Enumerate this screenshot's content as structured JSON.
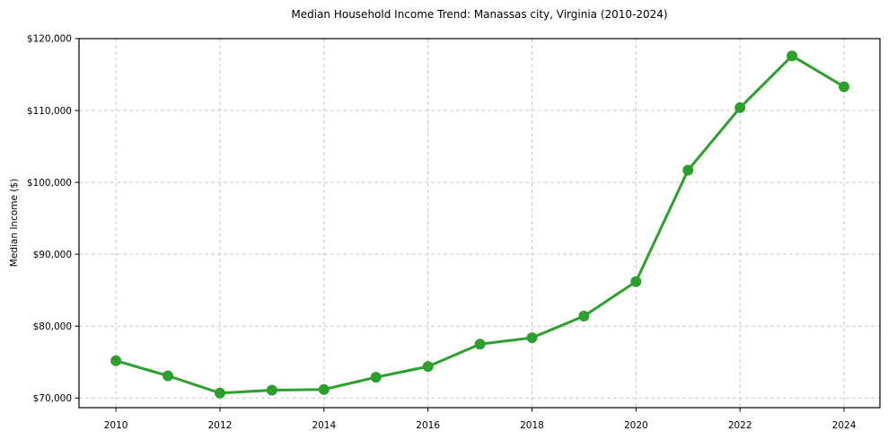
{
  "chart_data": {
    "type": "line",
    "title": "Median Household Income Trend: Manassas city, Virginia (2010-2024)",
    "ylabel": "Median Income ($)",
    "xlabel": "",
    "x": [
      2010,
      2011,
      2012,
      2013,
      2014,
      2015,
      2016,
      2017,
      2018,
      2019,
      2020,
      2021,
      2022,
      2023,
      2024
    ],
    "values": [
      75200,
      73100,
      70700,
      71100,
      71200,
      72900,
      74400,
      77500,
      78400,
      81400,
      86200,
      101700,
      110400,
      117600,
      113300
    ],
    "series_name": "Median Household Income",
    "xlim": [
      2009.29,
      2024.69
    ],
    "ylim": [
      68664,
      120000
    ],
    "yticks": [
      70000,
      80000,
      90000,
      100000,
      110000,
      120000
    ],
    "ytick_labels": [
      "$70,000",
      "$80,000",
      "$90,000",
      "$100,000",
      "$110,000",
      "$120,000"
    ],
    "xticks": [
      2010,
      2012,
      2014,
      2016,
      2018,
      2020,
      2022,
      2024
    ],
    "xtick_labels": [
      "2010",
      "2012",
      "2014",
      "2016",
      "2018",
      "2020",
      "2022",
      "2024"
    ],
    "grid": true,
    "grid_style": "dashed",
    "legend_position": "none",
    "colors": {
      "line": "#2ca02c",
      "marker": "#2ca02c",
      "grid": "#c8c8c8",
      "spine": "#000000",
      "text": "#000000",
      "background": "#ffffff"
    },
    "marker": "circle",
    "marker_radius": 6,
    "line_width": 3
  }
}
